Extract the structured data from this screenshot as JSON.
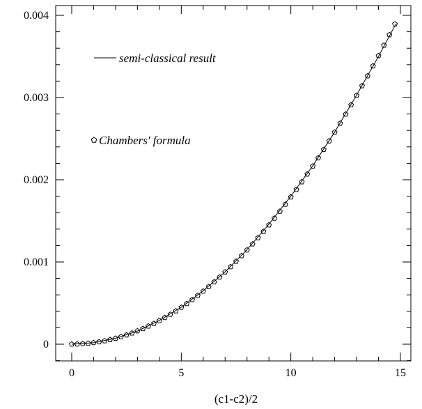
{
  "chart_data": {
    "type": "line",
    "title": "",
    "xlabel": "(c1-c2)/2",
    "ylabel": "",
    "xlim": [
      -1,
      15.5
    ],
    "ylim": [
      -0.0002,
      0.00405
    ],
    "x_ticks": [
      0,
      5,
      10,
      15
    ],
    "x_tick_labels": [
      "0",
      "5",
      "10",
      "15"
    ],
    "y_ticks": [
      0,
      0.001,
      0.002,
      0.003,
      0.004
    ],
    "y_tick_labels": [
      "0",
      "0.001",
      "0.002",
      "0.003",
      "0.004"
    ],
    "grid": false,
    "legend_position": "top-left",
    "series": [
      {
        "name": "semi-classical result",
        "style": "line",
        "color": "#000000",
        "x": [
          0,
          1,
          2,
          3,
          4,
          5,
          6,
          7,
          8,
          9,
          10,
          11,
          12,
          13,
          14,
          14.8
        ],
        "values": [
          0,
          1.8e-05,
          7.2e-05,
          0.00016,
          0.00029,
          0.00045,
          0.00065,
          0.00088,
          0.00115,
          0.00146,
          0.0018,
          0.00217,
          0.00258,
          0.00303,
          0.0035,
          0.0039
        ]
      },
      {
        "name": "Chambers' formula",
        "style": "markers",
        "marker": "pentagon",
        "color": "#000000",
        "x_start": 0,
        "x_step": 0.25,
        "x_end": 14.75,
        "curve_coefficient": 1.79e-05
      }
    ],
    "legend": [
      {
        "label": "semi-classical result",
        "symbol": "line"
      },
      {
        "label": "Chambers' formula",
        "symbol": "pentagon"
      }
    ]
  }
}
